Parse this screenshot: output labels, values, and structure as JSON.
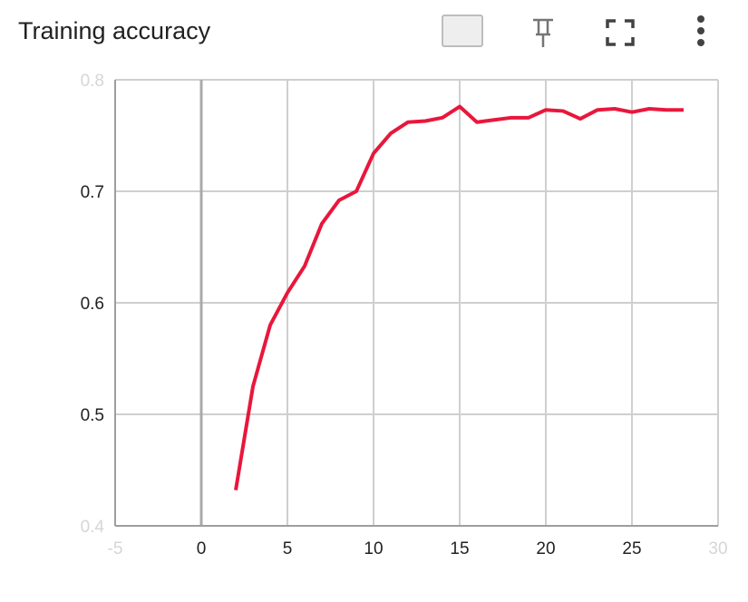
{
  "chart_data": {
    "type": "line",
    "title": "Training accuracy",
    "x": [
      2,
      3,
      4,
      5,
      6,
      7,
      8,
      9,
      10,
      11,
      12,
      13,
      14,
      15,
      16,
      17,
      18,
      19,
      20,
      21,
      22,
      23,
      24,
      25,
      26,
      27,
      28
    ],
    "series": [
      {
        "name": "accuracy",
        "color": "#e8173c",
        "values": [
          0.432,
          0.525,
          0.58,
          0.609,
          0.633,
          0.671,
          0.692,
          0.7,
          0.734,
          0.752,
          0.762,
          0.763,
          0.766,
          0.776,
          0.762,
          0.764,
          0.766,
          0.766,
          0.773,
          0.772,
          0.765,
          0.773,
          0.774,
          0.771,
          0.774,
          0.773,
          0.773
        ]
      }
    ],
    "xlim": [
      -5,
      30
    ],
    "xticks": [
      -5,
      0,
      5,
      10,
      15,
      20,
      25,
      30
    ],
    "ylim": [
      0.4,
      0.8
    ],
    "yticks": [
      0.4,
      0.5,
      0.6,
      0.7,
      0.8
    ],
    "grid": true
  }
}
